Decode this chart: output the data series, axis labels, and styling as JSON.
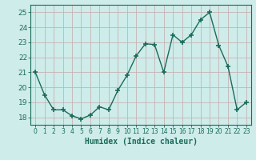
{
  "x": [
    0,
    1,
    2,
    3,
    4,
    5,
    6,
    7,
    8,
    9,
    10,
    11,
    12,
    13,
    14,
    15,
    16,
    17,
    18,
    19,
    20,
    21,
    22,
    23
  ],
  "y": [
    21.0,
    19.5,
    18.5,
    18.5,
    18.1,
    17.9,
    18.15,
    18.7,
    18.5,
    19.8,
    20.8,
    22.1,
    22.9,
    22.85,
    21.0,
    23.5,
    23.0,
    23.5,
    24.5,
    25.0,
    22.8,
    21.4,
    18.5,
    19.0
  ],
  "line_color": "#1a6b5a",
  "marker_color": "#1a6b5a",
  "bg_color": "#ceecea",
  "grid_color_v": "#c8b0b0",
  "grid_color_h": "#c8b0b0",
  "xlabel": "Humidex (Indice chaleur)",
  "xlim": [
    -0.5,
    23.5
  ],
  "ylim": [
    17.5,
    25.5
  ],
  "yticks": [
    18,
    19,
    20,
    21,
    22,
    23,
    24,
    25
  ],
  "xticks": [
    0,
    1,
    2,
    3,
    4,
    5,
    6,
    7,
    8,
    9,
    10,
    11,
    12,
    13,
    14,
    15,
    16,
    17,
    18,
    19,
    20,
    21,
    22,
    23
  ],
  "marker_size": 4,
  "line_width": 1.0
}
